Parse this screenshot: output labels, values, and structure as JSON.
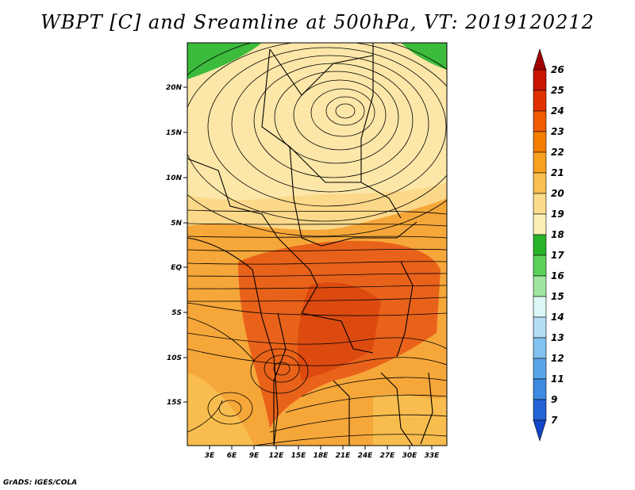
{
  "title": "WBPT [C] and Sreamline at 500hPa, VT: 2019120212",
  "credit": "GrADS: IGES/COLA",
  "map": {
    "lat_labels": [
      "20N",
      "15N",
      "10N",
      "5N",
      "EQ",
      "5S",
      "10S",
      "15S"
    ],
    "lon_labels": [
      "3E",
      "6E",
      "9E",
      "12E",
      "15E",
      "18E",
      "21E",
      "24E",
      "27E",
      "30E",
      "33E"
    ],
    "variable": "wet-bulb potential temperature",
    "overlay": "streamlines",
    "features": [
      "anticyclonic circulation centered near 17N 25E",
      "cyclonic eddy near 12S 13E"
    ]
  },
  "colorbar": {
    "labels": [
      "26",
      "25",
      "24",
      "23",
      "22",
      "21",
      "20",
      "19",
      "18",
      "17",
      "16",
      "15",
      "14",
      "13",
      "12",
      "11",
      "9",
      "7"
    ],
    "colors": [
      "#a00000",
      "#c81400",
      "#e03000",
      "#f05a00",
      "#f57d00",
      "#f8a020",
      "#fac050",
      "#fbdc8c",
      "#fcf0b4",
      "#28b428",
      "#5ad25a",
      "#a0e6a0",
      "#dcf5f5",
      "#b4dcf5",
      "#82c3f0",
      "#5aa5ea",
      "#3c8be1",
      "#2364d7",
      "#1446c8"
    ]
  }
}
